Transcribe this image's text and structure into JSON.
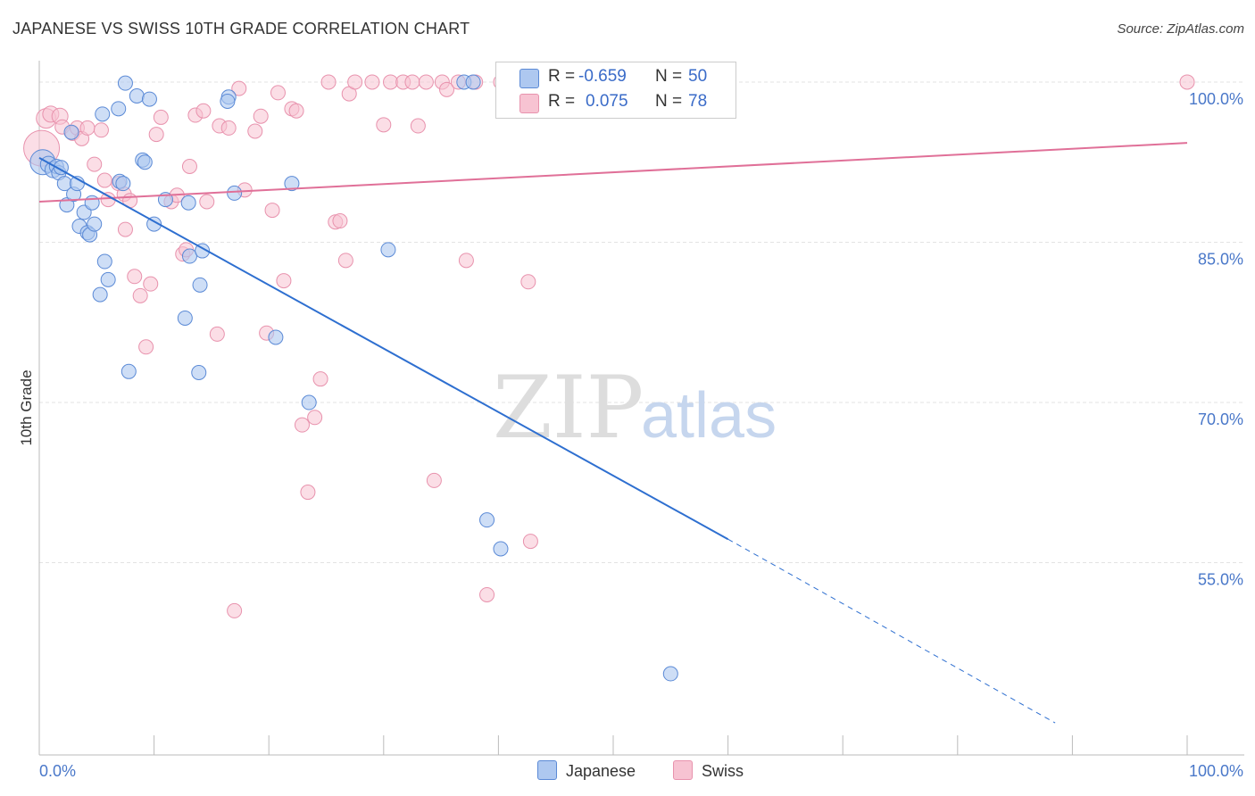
{
  "title": "JAPANESE VS SWISS 10TH GRADE CORRELATION CHART",
  "source": "Source: ZipAtlas.com",
  "watermark": {
    "zip": "ZIP",
    "atlas": "atlas"
  },
  "colors": {
    "japanese_fill": "#aec8f0",
    "japanese_stroke": "#5b8ad6",
    "japanese_line": "#2e6fd0",
    "swiss_fill": "#f7c3d2",
    "swiss_stroke": "#e892ad",
    "swiss_line": "#e07098",
    "grid": "#e3e3e3",
    "tick_label": "#4a78c9"
  },
  "legend": {
    "japanese": {
      "r_label": "R = ",
      "r_value": "-0.659",
      "n_label": "N = ",
      "n_value": "50"
    },
    "swiss": {
      "r_label": "R = ",
      "r_value": "0.075",
      "n_label": "N = ",
      "n_value": "78"
    }
  },
  "bottom_legend": {
    "japanese": "Japanese",
    "swiss": "Swiss"
  },
  "chart_data": {
    "type": "scatter",
    "title": "JAPANESE VS SWISS 10TH GRADE CORRELATION CHART",
    "xlabel": "",
    "ylabel": "10th Grade",
    "xlim": [
      0,
      100
    ],
    "ylim": [
      37.0,
      102.0
    ],
    "x_tick_labels": {
      "min": "0.0%",
      "max": "100.0%"
    },
    "y_ticks": [
      {
        "value": 100.0,
        "label": "100.0%"
      },
      {
        "value": 85.0,
        "label": "85.0%"
      },
      {
        "value": 70.0,
        "label": "70.0%"
      },
      {
        "value": 55.0,
        "label": "55.0%"
      }
    ],
    "grid": true,
    "series": [
      {
        "name": "Japanese",
        "r": -0.659,
        "n": 50,
        "trend": {
          "x0": 0.0,
          "y0": 92.9,
          "x1": 60.0,
          "y1": 57.2,
          "x_dash_end": 88.5,
          "y_dash_end": 40.0
        },
        "points": [
          [
            0.3,
            92.5,
            14
          ],
          [
            0.8,
            92.3,
            9
          ],
          [
            1.2,
            91.8,
            9
          ],
          [
            1.5,
            92.1,
            8
          ],
          [
            1.7,
            91.5,
            8
          ],
          [
            1.9,
            92.0,
            8
          ],
          [
            2.2,
            90.5,
            8
          ],
          [
            2.4,
            88.5,
            8
          ],
          [
            3.0,
            89.5,
            8
          ],
          [
            3.3,
            90.5,
            8
          ],
          [
            3.5,
            86.5,
            8
          ],
          [
            3.9,
            87.8,
            8
          ],
          [
            4.2,
            85.9,
            8
          ],
          [
            4.4,
            85.7,
            8
          ],
          [
            4.6,
            88.7,
            8
          ],
          [
            4.8,
            86.7,
            8
          ],
          [
            2.8,
            95.3,
            8
          ],
          [
            5.5,
            97.0,
            8
          ],
          [
            5.7,
            83.2,
            8
          ],
          [
            6.0,
            81.5,
            8
          ],
          [
            5.3,
            80.1,
            8
          ],
          [
            7.0,
            90.7,
            8
          ],
          [
            7.3,
            90.5,
            8
          ],
          [
            6.9,
            97.5,
            8
          ],
          [
            7.5,
            99.9,
            8
          ],
          [
            8.5,
            98.7,
            8
          ],
          [
            9.0,
            92.7,
            8
          ],
          [
            9.2,
            92.5,
            8
          ],
          [
            9.6,
            98.4,
            8
          ],
          [
            10.0,
            86.7,
            8
          ],
          [
            11.0,
            89.0,
            8
          ],
          [
            13.0,
            88.7,
            8
          ],
          [
            13.1,
            83.7,
            8
          ],
          [
            14.0,
            81.0,
            8
          ],
          [
            13.9,
            72.8,
            8
          ],
          [
            7.8,
            72.9,
            8
          ],
          [
            14.2,
            84.2,
            8
          ],
          [
            12.7,
            77.9,
            8
          ],
          [
            16.5,
            98.6,
            8
          ],
          [
            16.4,
            98.2,
            8
          ],
          [
            17.0,
            89.6,
            8
          ],
          [
            20.6,
            76.1,
            8
          ],
          [
            22.0,
            90.5,
            8
          ],
          [
            23.5,
            70.0,
            8
          ],
          [
            30.4,
            84.3,
            8
          ],
          [
            37.0,
            100.0,
            8
          ],
          [
            37.8,
            100.0,
            8
          ],
          [
            39.0,
            59.0,
            8
          ],
          [
            40.2,
            56.3,
            8
          ],
          [
            55.0,
            44.6,
            8
          ]
        ]
      },
      {
        "name": "Swiss",
        "r": 0.075,
        "n": 78,
        "trend": {
          "x0": 0.0,
          "y0": 88.8,
          "x1": 100.0,
          "y1": 94.3
        },
        "points": [
          [
            0.2,
            93.8,
            20
          ],
          [
            0.6,
            96.6,
            11
          ],
          [
            1.0,
            97.0,
            9
          ],
          [
            1.8,
            96.8,
            9
          ],
          [
            2.0,
            95.8,
            8
          ],
          [
            2.9,
            95.2,
            8
          ],
          [
            3.3,
            95.7,
            8
          ],
          [
            3.7,
            94.7,
            8
          ],
          [
            4.2,
            95.7,
            8
          ],
          [
            4.8,
            92.3,
            8
          ],
          [
            5.4,
            95.5,
            8
          ],
          [
            5.7,
            90.8,
            8
          ],
          [
            6.0,
            89.0,
            8
          ],
          [
            6.9,
            90.5,
            8
          ],
          [
            7.4,
            89.5,
            8
          ],
          [
            7.5,
            86.2,
            8
          ],
          [
            7.9,
            88.9,
            8
          ],
          [
            8.3,
            81.8,
            8
          ],
          [
            8.8,
            80.0,
            8
          ],
          [
            9.3,
            75.2,
            8
          ],
          [
            9.7,
            81.1,
            8
          ],
          [
            10.2,
            95.1,
            8
          ],
          [
            10.6,
            96.7,
            8
          ],
          [
            11.5,
            88.8,
            8
          ],
          [
            12.0,
            89.4,
            8
          ],
          [
            12.5,
            83.9,
            8
          ],
          [
            12.8,
            84.3,
            8
          ],
          [
            13.1,
            92.1,
            8
          ],
          [
            13.6,
            96.9,
            8
          ],
          [
            14.3,
            97.3,
            8
          ],
          [
            14.6,
            88.8,
            8
          ],
          [
            15.5,
            76.4,
            8
          ],
          [
            15.7,
            95.9,
            8
          ],
          [
            16.5,
            95.7,
            8
          ],
          [
            17.0,
            50.5,
            8
          ],
          [
            17.4,
            99.4,
            8
          ],
          [
            17.9,
            89.9,
            8
          ],
          [
            18.8,
            95.4,
            8
          ],
          [
            19.3,
            96.8,
            8
          ],
          [
            19.8,
            76.5,
            8
          ],
          [
            20.3,
            88.0,
            8
          ],
          [
            20.8,
            99.0,
            8
          ],
          [
            21.3,
            81.4,
            8
          ],
          [
            22.0,
            97.5,
            8
          ],
          [
            22.4,
            97.3,
            8
          ],
          [
            22.9,
            67.9,
            8
          ],
          [
            23.4,
            61.6,
            8
          ],
          [
            24.0,
            68.6,
            8
          ],
          [
            24.5,
            72.2,
            8
          ],
          [
            25.2,
            100.0,
            8
          ],
          [
            25.8,
            86.9,
            8
          ],
          [
            26.2,
            87.0,
            8
          ],
          [
            26.7,
            83.3,
            8
          ],
          [
            27.0,
            98.9,
            8
          ],
          [
            27.5,
            100.0,
            8
          ],
          [
            29.0,
            100.0,
            8
          ],
          [
            30.0,
            96.0,
            8
          ],
          [
            30.6,
            100.0,
            8
          ],
          [
            31.7,
            100.0,
            8
          ],
          [
            32.5,
            100.0,
            8
          ],
          [
            33.0,
            95.9,
            8
          ],
          [
            33.7,
            100.0,
            8
          ],
          [
            34.4,
            62.7,
            8
          ],
          [
            35.1,
            100.0,
            8
          ],
          [
            35.5,
            99.3,
            8
          ],
          [
            36.5,
            100.0,
            8
          ],
          [
            37.2,
            83.3,
            8
          ],
          [
            38.0,
            100.0,
            8
          ],
          [
            39.0,
            52.0,
            8
          ],
          [
            40.2,
            100.0,
            8
          ],
          [
            42.5,
            100.0,
            8
          ],
          [
            43.4,
            100.0,
            8
          ],
          [
            42.6,
            81.3,
            8
          ],
          [
            42.8,
            57.0,
            8
          ],
          [
            45.0,
            100.0,
            8
          ],
          [
            47.0,
            100.0,
            8
          ],
          [
            49.5,
            100.0,
            8
          ],
          [
            100.0,
            100.0,
            8
          ]
        ]
      }
    ]
  }
}
